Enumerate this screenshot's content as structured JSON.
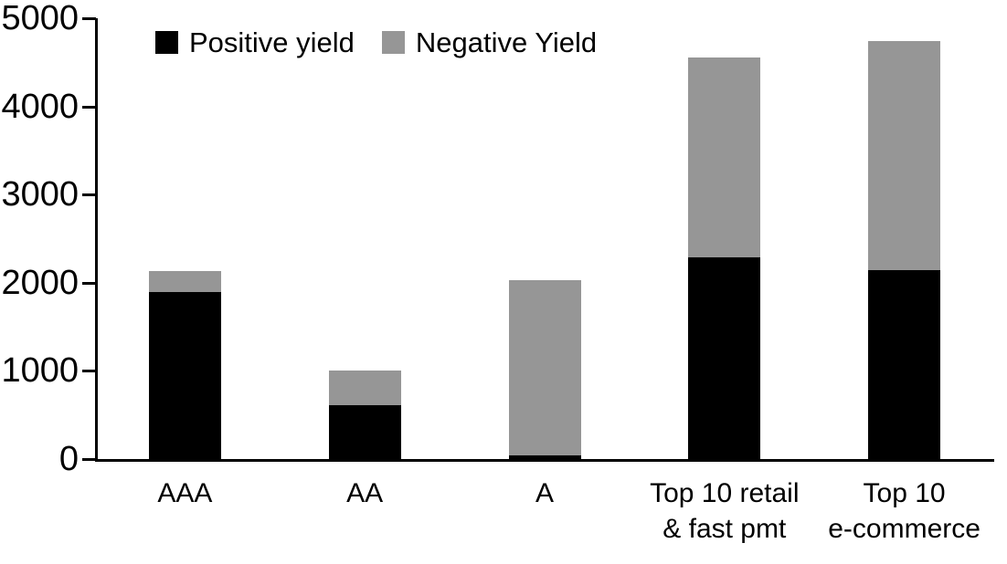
{
  "chart_data": {
    "type": "bar",
    "stacked": true,
    "title": "",
    "xlabel": "",
    "ylabel": "",
    "categories": [
      "AAA",
      "AA",
      "A",
      "Top 10 retail\n& fast pmt",
      "Top 10\ne-commerce"
    ],
    "series": [
      {
        "name": "Positive yield",
        "color": "#000000",
        "values": [
          1890,
          610,
          45,
          2290,
          2140
        ]
      },
      {
        "name": "Negative Yield",
        "color": "#969696",
        "values": [
          240,
          390,
          1985,
          2265,
          2600
        ]
      }
    ],
    "totals": [
      2130,
      1000,
      2030,
      4555,
      4740
    ],
    "ylim": [
      0,
      5000
    ],
    "yticks": [
      0,
      1000,
      2000,
      3000,
      4000,
      5000
    ],
    "legend_position": "top",
    "grid": false
  },
  "colors": {
    "background": "#ffffff",
    "axis": "#000000",
    "text": "#000000",
    "positive_series": "#000000",
    "negative_series": "#969696"
  }
}
